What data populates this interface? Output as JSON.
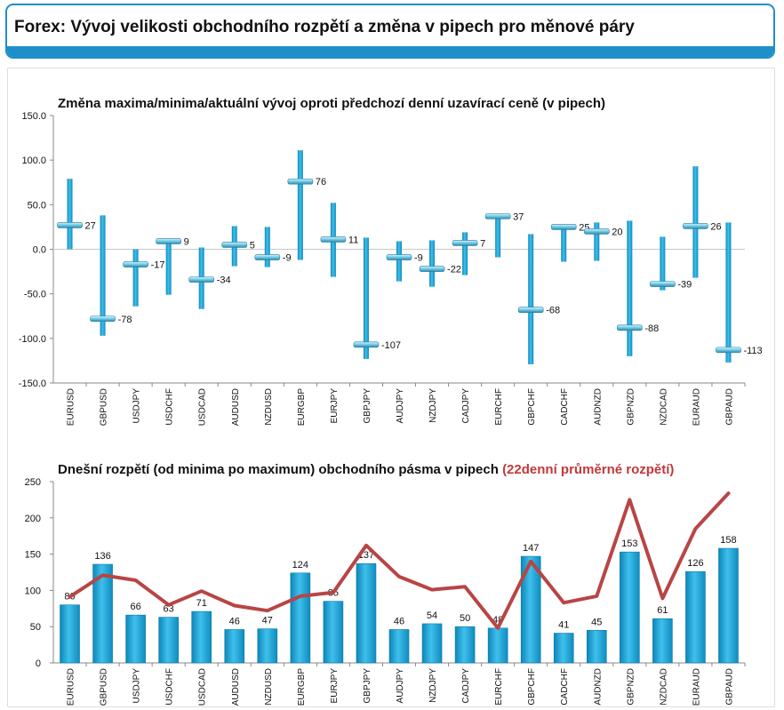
{
  "header": {
    "title": "Forex: Vývoj velikosti obchodního rozpětí a změna v pipech pro měnové páry"
  },
  "colors": {
    "accent": "#1f8fc9",
    "bar": "#17a2d6",
    "avg_line": "#b84545",
    "avg_title": "#c0393b"
  },
  "chart_data": [
    {
      "type": "range_with_marker",
      "title": "Změna maxima/minima/aktuální vývoj oproti předchozí denní uzavírací ceně (v pipech)",
      "categories": [
        "EURUSD",
        "GBPUSD",
        "USDJPY",
        "USDCHF",
        "USDCAD",
        "AUDUSD",
        "NZDUSD",
        "EURGBP",
        "EURJPY",
        "GBPJPY",
        "AUDJPY",
        "NZDJPY",
        "CADJPY",
        "EURCHF",
        "GBPCHF",
        "CADCHF",
        "AUDNZD",
        "GBPNZD",
        "NZDCAD",
        "EURAUD",
        "GBPAUD"
      ],
      "high": [
        79,
        38,
        0,
        10,
        2,
        26,
        25,
        111,
        52,
        13,
        9,
        10,
        19,
        40,
        17,
        25,
        30,
        32,
        14,
        93,
        30
      ],
      "low": [
        0,
        -97,
        -64,
        -51,
        -67,
        -19,
        -20,
        -12,
        -31,
        -123,
        -36,
        -42,
        -29,
        -9,
        -129,
        -14,
        -13,
        -120,
        -46,
        -32,
        -127
      ],
      "current": [
        27,
        -78,
        -17,
        9,
        -34,
        5,
        -9,
        76,
        11,
        -107,
        -9,
        -22,
        7,
        37,
        -68,
        25,
        20,
        -88,
        -39,
        26,
        -113
      ],
      "current_labels": [
        "27",
        "-78",
        "-17",
        "9",
        "-34",
        "5",
        "-9",
        "76",
        "11",
        "-107",
        "-9",
        "-22",
        "7",
        "37",
        "-68",
        "25",
        "20",
        "-88",
        "-39",
        "26",
        "-113"
      ],
      "ylim": [
        -150,
        150
      ],
      "yticks": [
        "150.0",
        "100.0",
        "50.0",
        "0.0",
        "-50.0",
        "-100.0",
        "-150.0"
      ]
    },
    {
      "type": "bar_line",
      "title": "Dnešní rozpětí (od minima po maximum) obchodního pásma v pipech",
      "title_highlight": "(22denní průměrné rozpětí)",
      "categories": [
        "EURUSD",
        "GBPUSD",
        "USDJPY",
        "USDCHF",
        "USDCAD",
        "AUDUSD",
        "NZDUSD",
        "EURGBP",
        "EURJPY",
        "GBPJPY",
        "AUDJPY",
        "NZDJPY",
        "CADJPY",
        "EURCHF",
        "GBPCHF",
        "CADCHF",
        "AUDNZD",
        "GBPNZD",
        "NZDCAD",
        "EURAUD",
        "GBPAUD"
      ],
      "values": [
        80,
        136,
        66,
        63,
        71,
        46,
        47,
        124,
        85,
        137,
        46,
        54,
        50,
        48,
        147,
        41,
        45,
        153,
        61,
        126,
        158
      ],
      "value_labels": [
        "80",
        "136",
        "66",
        "63",
        "71",
        "46",
        "47",
        "124",
        "85",
        "137",
        "46",
        "54",
        "50",
        "48",
        "147",
        "41",
        "45",
        "153",
        "61",
        "126",
        "158"
      ],
      "average": [
        91,
        121,
        114,
        80,
        99,
        79,
        72,
        92,
        97,
        162,
        119,
        101,
        105,
        48,
        140,
        83,
        92,
        225,
        89,
        185,
        234
      ],
      "ylim": [
        0,
        250
      ],
      "yticks": [
        "250",
        "200",
        "150",
        "100",
        "50",
        "0"
      ]
    }
  ]
}
